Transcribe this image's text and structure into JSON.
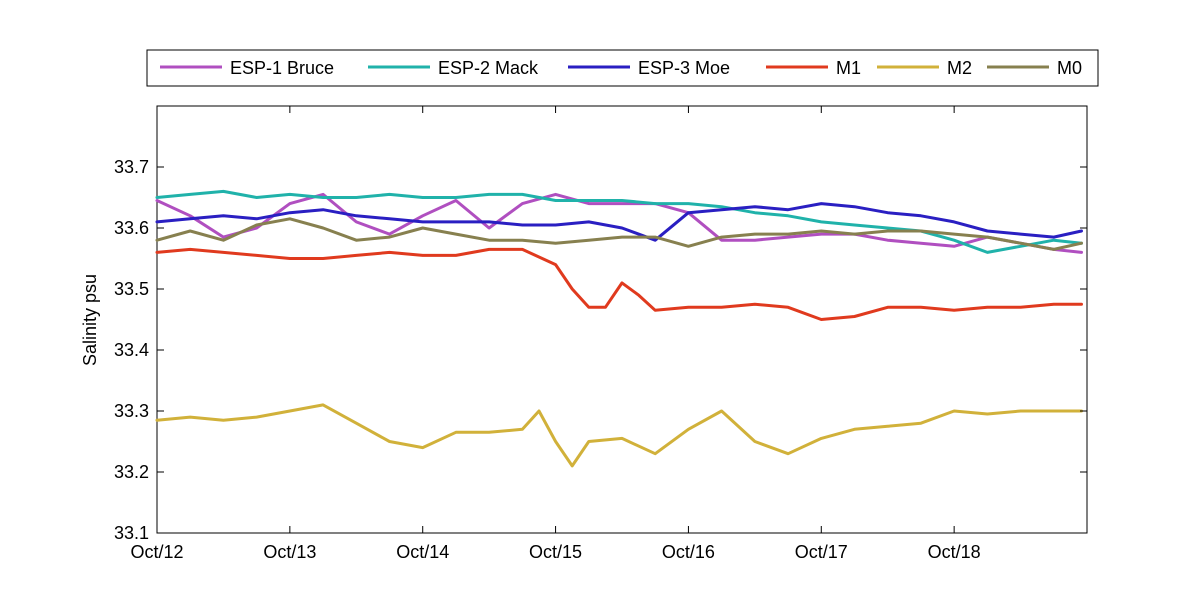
{
  "chart_data": {
    "type": "line",
    "title": "",
    "xlabel": "",
    "ylabel": "Salinity psu",
    "xlim": [
      "2012-10-12",
      "2012-10-19"
    ],
    "ylim": [
      33.1,
      33.8
    ],
    "y_ticks": [
      33.1,
      33.2,
      33.3,
      33.4,
      33.5,
      33.6,
      33.7
    ],
    "y_tick_labels": [
      "33.1",
      "33.2",
      "33.3",
      "33.4",
      "33.5",
      "33.6",
      "33.7"
    ],
    "x_ticks": [
      "2012-10-12",
      "2012-10-13",
      "2012-10-14",
      "2012-10-15",
      "2012-10-16",
      "2012-10-17",
      "2012-10-18"
    ],
    "x_tick_labels": [
      "Oct/12",
      "Oct/13",
      "Oct/14",
      "Oct/15",
      "Oct/16",
      "Oct/17",
      "Oct/18"
    ],
    "grid": false,
    "legend_position": "top",
    "series": [
      {
        "name": "ESP-1 Bruce",
        "color": "#b04fc0",
        "x": [
          "2012-10-12",
          "2012-10-12T06:00",
          "2012-10-12T12:00",
          "2012-10-12T18:00",
          "2012-10-13",
          "2012-10-13T06:00",
          "2012-10-13T12:00",
          "2012-10-13T18:00",
          "2012-10-14",
          "2012-10-14T06:00",
          "2012-10-14T12:00",
          "2012-10-14T18:00",
          "2012-10-15",
          "2012-10-15T06:00",
          "2012-10-15T12:00",
          "2012-10-15T18:00",
          "2012-10-16",
          "2012-10-16T06:00",
          "2012-10-16T12:00",
          "2012-10-16T18:00",
          "2012-10-17",
          "2012-10-17T06:00",
          "2012-10-17T12:00",
          "2012-10-17T18:00",
          "2012-10-18",
          "2012-10-18T06:00",
          "2012-10-18T12:00",
          "2012-10-18T18:00",
          "2012-10-18T23:00"
        ],
        "y": [
          33.645,
          33.62,
          33.585,
          33.6,
          33.64,
          33.655,
          33.61,
          33.59,
          33.62,
          33.645,
          33.6,
          33.64,
          33.655,
          33.64,
          33.64,
          33.64,
          33.625,
          33.58,
          33.58,
          33.585,
          33.59,
          33.59,
          33.58,
          33.575,
          33.57,
          33.585,
          33.575,
          33.565,
          33.56
        ]
      },
      {
        "name": "ESP-2 Mack",
        "color": "#20b2aa",
        "x": [
          "2012-10-12",
          "2012-10-12T06:00",
          "2012-10-12T12:00",
          "2012-10-12T18:00",
          "2012-10-13",
          "2012-10-13T06:00",
          "2012-10-13T12:00",
          "2012-10-13T18:00",
          "2012-10-14",
          "2012-10-14T06:00",
          "2012-10-14T12:00",
          "2012-10-14T18:00",
          "2012-10-15",
          "2012-10-15T06:00",
          "2012-10-15T12:00",
          "2012-10-15T18:00",
          "2012-10-16",
          "2012-10-16T06:00",
          "2012-10-16T12:00",
          "2012-10-16T18:00",
          "2012-10-17",
          "2012-10-17T06:00",
          "2012-10-17T12:00",
          "2012-10-17T18:00",
          "2012-10-18",
          "2012-10-18T06:00",
          "2012-10-18T12:00",
          "2012-10-18T18:00",
          "2012-10-18T23:00"
        ],
        "y": [
          33.65,
          33.655,
          33.66,
          33.65,
          33.655,
          33.65,
          33.65,
          33.655,
          33.65,
          33.65,
          33.655,
          33.655,
          33.645,
          33.645,
          33.645,
          33.64,
          33.64,
          33.635,
          33.625,
          33.62,
          33.61,
          33.605,
          33.6,
          33.595,
          33.58,
          33.56,
          33.57,
          33.58,
          33.575
        ]
      },
      {
        "name": "ESP-3 Moe",
        "color": "#2a1fc2",
        "x": [
          "2012-10-12",
          "2012-10-12T06:00",
          "2012-10-12T12:00",
          "2012-10-12T18:00",
          "2012-10-13",
          "2012-10-13T06:00",
          "2012-10-13T12:00",
          "2012-10-13T18:00",
          "2012-10-14",
          "2012-10-14T06:00",
          "2012-10-14T12:00",
          "2012-10-14T18:00",
          "2012-10-15",
          "2012-10-15T06:00",
          "2012-10-15T12:00",
          "2012-10-15T18:00",
          "2012-10-16",
          "2012-10-16T06:00",
          "2012-10-16T12:00",
          "2012-10-16T18:00",
          "2012-10-17",
          "2012-10-17T06:00",
          "2012-10-17T12:00",
          "2012-10-17T18:00",
          "2012-10-18",
          "2012-10-18T06:00",
          "2012-10-18T12:00",
          "2012-10-18T18:00",
          "2012-10-18T23:00"
        ],
        "y": [
          33.61,
          33.615,
          33.62,
          33.615,
          33.625,
          33.63,
          33.62,
          33.615,
          33.61,
          33.61,
          33.61,
          33.605,
          33.605,
          33.61,
          33.6,
          33.58,
          33.625,
          33.63,
          33.635,
          33.63,
          33.64,
          33.635,
          33.625,
          33.62,
          33.61,
          33.595,
          33.59,
          33.585,
          33.595
        ]
      },
      {
        "name": "M1",
        "color": "#e03a1e",
        "x": [
          "2012-10-12",
          "2012-10-12T06:00",
          "2012-10-12T12:00",
          "2012-10-12T18:00",
          "2012-10-13",
          "2012-10-13T06:00",
          "2012-10-13T12:00",
          "2012-10-13T18:00",
          "2012-10-14",
          "2012-10-14T06:00",
          "2012-10-14T12:00",
          "2012-10-14T18:00",
          "2012-10-15",
          "2012-10-15T03:00",
          "2012-10-15T06:00",
          "2012-10-15T09:00",
          "2012-10-15T12:00",
          "2012-10-15T15:00",
          "2012-10-15T18:00",
          "2012-10-16",
          "2012-10-16T06:00",
          "2012-10-16T12:00",
          "2012-10-16T18:00",
          "2012-10-17",
          "2012-10-17T06:00",
          "2012-10-17T12:00",
          "2012-10-17T18:00",
          "2012-10-18",
          "2012-10-18T06:00",
          "2012-10-18T12:00",
          "2012-10-18T18:00",
          "2012-10-18T23:00"
        ],
        "y": [
          33.56,
          33.565,
          33.56,
          33.555,
          33.55,
          33.55,
          33.555,
          33.56,
          33.555,
          33.555,
          33.565,
          33.565,
          33.54,
          33.5,
          33.47,
          33.47,
          33.51,
          33.49,
          33.465,
          33.47,
          33.47,
          33.475,
          33.47,
          33.45,
          33.455,
          33.47,
          33.47,
          33.465,
          33.47,
          33.47,
          33.475,
          33.475
        ]
      },
      {
        "name": "M2",
        "color": "#d1b13a",
        "x": [
          "2012-10-12",
          "2012-10-12T06:00",
          "2012-10-12T12:00",
          "2012-10-12T18:00",
          "2012-10-13",
          "2012-10-13T06:00",
          "2012-10-13T12:00",
          "2012-10-13T18:00",
          "2012-10-14",
          "2012-10-14T06:00",
          "2012-10-14T12:00",
          "2012-10-14T18:00",
          "2012-10-14T21:00",
          "2012-10-15",
          "2012-10-15T03:00",
          "2012-10-15T06:00",
          "2012-10-15T12:00",
          "2012-10-15T18:00",
          "2012-10-16",
          "2012-10-16T06:00",
          "2012-10-16T12:00",
          "2012-10-16T18:00",
          "2012-10-17",
          "2012-10-17T06:00",
          "2012-10-17T12:00",
          "2012-10-17T18:00",
          "2012-10-18",
          "2012-10-18T06:00",
          "2012-10-18T12:00",
          "2012-10-18T18:00",
          "2012-10-18T23:00"
        ],
        "y": [
          33.285,
          33.29,
          33.285,
          33.29,
          33.3,
          33.31,
          33.28,
          33.25,
          33.24,
          33.265,
          33.265,
          33.27,
          33.3,
          33.25,
          33.21,
          33.25,
          33.255,
          33.23,
          33.27,
          33.3,
          33.25,
          33.23,
          33.255,
          33.27,
          33.275,
          33.28,
          33.3,
          33.295,
          33.3,
          33.3,
          33.3
        ]
      },
      {
        "name": "M0",
        "color": "#87804f",
        "x": [
          "2012-10-12",
          "2012-10-12T06:00",
          "2012-10-12T12:00",
          "2012-10-12T18:00",
          "2012-10-13",
          "2012-10-13T06:00",
          "2012-10-13T12:00",
          "2012-10-13T18:00",
          "2012-10-14",
          "2012-10-14T06:00",
          "2012-10-14T12:00",
          "2012-10-14T18:00",
          "2012-10-15",
          "2012-10-15T06:00",
          "2012-10-15T12:00",
          "2012-10-15T18:00",
          "2012-10-16",
          "2012-10-16T06:00",
          "2012-10-16T12:00",
          "2012-10-16T18:00",
          "2012-10-17",
          "2012-10-17T06:00",
          "2012-10-17T12:00",
          "2012-10-17T18:00",
          "2012-10-18",
          "2012-10-18T06:00",
          "2012-10-18T12:00",
          "2012-10-18T18:00",
          "2012-10-18T23:00"
        ],
        "y": [
          33.58,
          33.595,
          33.58,
          33.605,
          33.615,
          33.6,
          33.58,
          33.585,
          33.6,
          33.59,
          33.58,
          33.58,
          33.575,
          33.58,
          33.585,
          33.585,
          33.57,
          33.585,
          33.59,
          33.59,
          33.595,
          33.59,
          33.595,
          33.595,
          33.59,
          33.585,
          33.575,
          33.565,
          33.575
        ]
      }
    ]
  }
}
